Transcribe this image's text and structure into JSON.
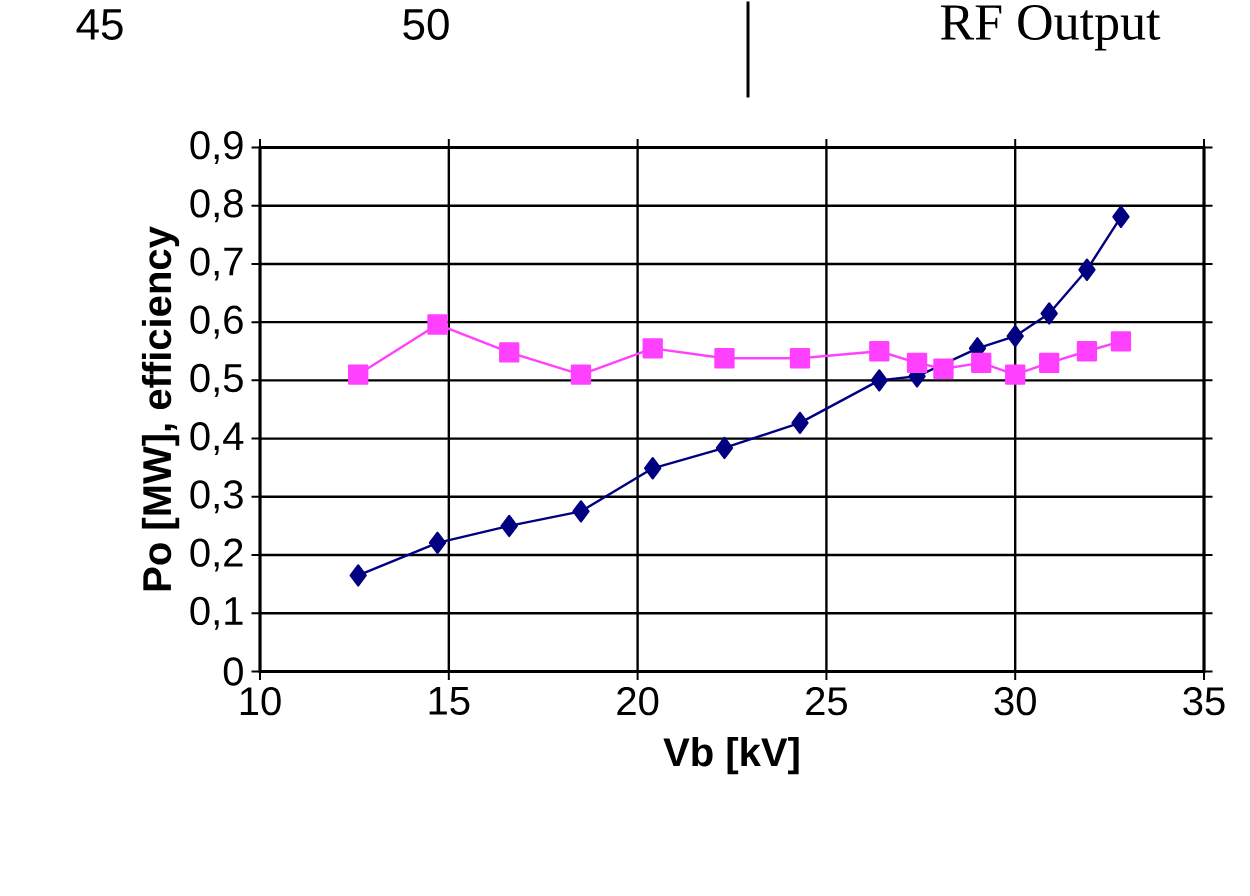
{
  "chart_data": {
    "type": "line",
    "xlabel": "Vb [kV]",
    "ylabel": "Po [MW], efficiency",
    "xlim": [
      10,
      35
    ],
    "xticks": [
      10,
      15,
      20,
      25,
      30,
      35
    ],
    "ylim": [
      0,
      0.9
    ],
    "yticks": [
      {
        "value": 0,
        "label": "0"
      },
      {
        "value": 0.1,
        "label": "0,1"
      },
      {
        "value": 0.2,
        "label": "0,2"
      },
      {
        "value": 0.3,
        "label": "0,3"
      },
      {
        "value": 0.4,
        "label": "0,4"
      },
      {
        "value": 0.5,
        "label": "0,5"
      },
      {
        "value": 0.6,
        "label": "0,6"
      },
      {
        "value": 0.7,
        "label": "0,7"
      },
      {
        "value": 0.8,
        "label": "0,8"
      },
      {
        "value": 0.9,
        "label": "0,9"
      }
    ],
    "grid": true,
    "line_style": "solid",
    "series": [
      {
        "color": "#000080",
        "marker": "diamond",
        "x": [
          12.6,
          14.7,
          16.6,
          18.5,
          20.4,
          22.3,
          24.3,
          26.4,
          27.4,
          29.0,
          30.0,
          30.9,
          31.9,
          32.8
        ],
        "values": [
          0.165,
          0.221,
          0.25,
          0.275,
          0.349,
          0.384,
          0.427,
          0.5,
          0.507,
          0.555,
          0.576,
          0.615,
          0.69,
          0.781
        ]
      },
      {
        "color": "#ff40ff",
        "marker": "square",
        "x": [
          12.6,
          14.7,
          16.6,
          18.5,
          20.4,
          22.3,
          24.3,
          26.4,
          27.4,
          28.1,
          29.1,
          30.0,
          30.9,
          31.9,
          32.8
        ],
        "values": [
          0.51,
          0.596,
          0.548,
          0.51,
          0.555,
          0.538,
          0.538,
          0.55,
          0.53,
          0.52,
          0.53,
          0.51,
          0.53,
          0.55,
          0.567
        ]
      }
    ],
    "annotations": [
      "45",
      "50",
      "RF Output"
    ]
  }
}
